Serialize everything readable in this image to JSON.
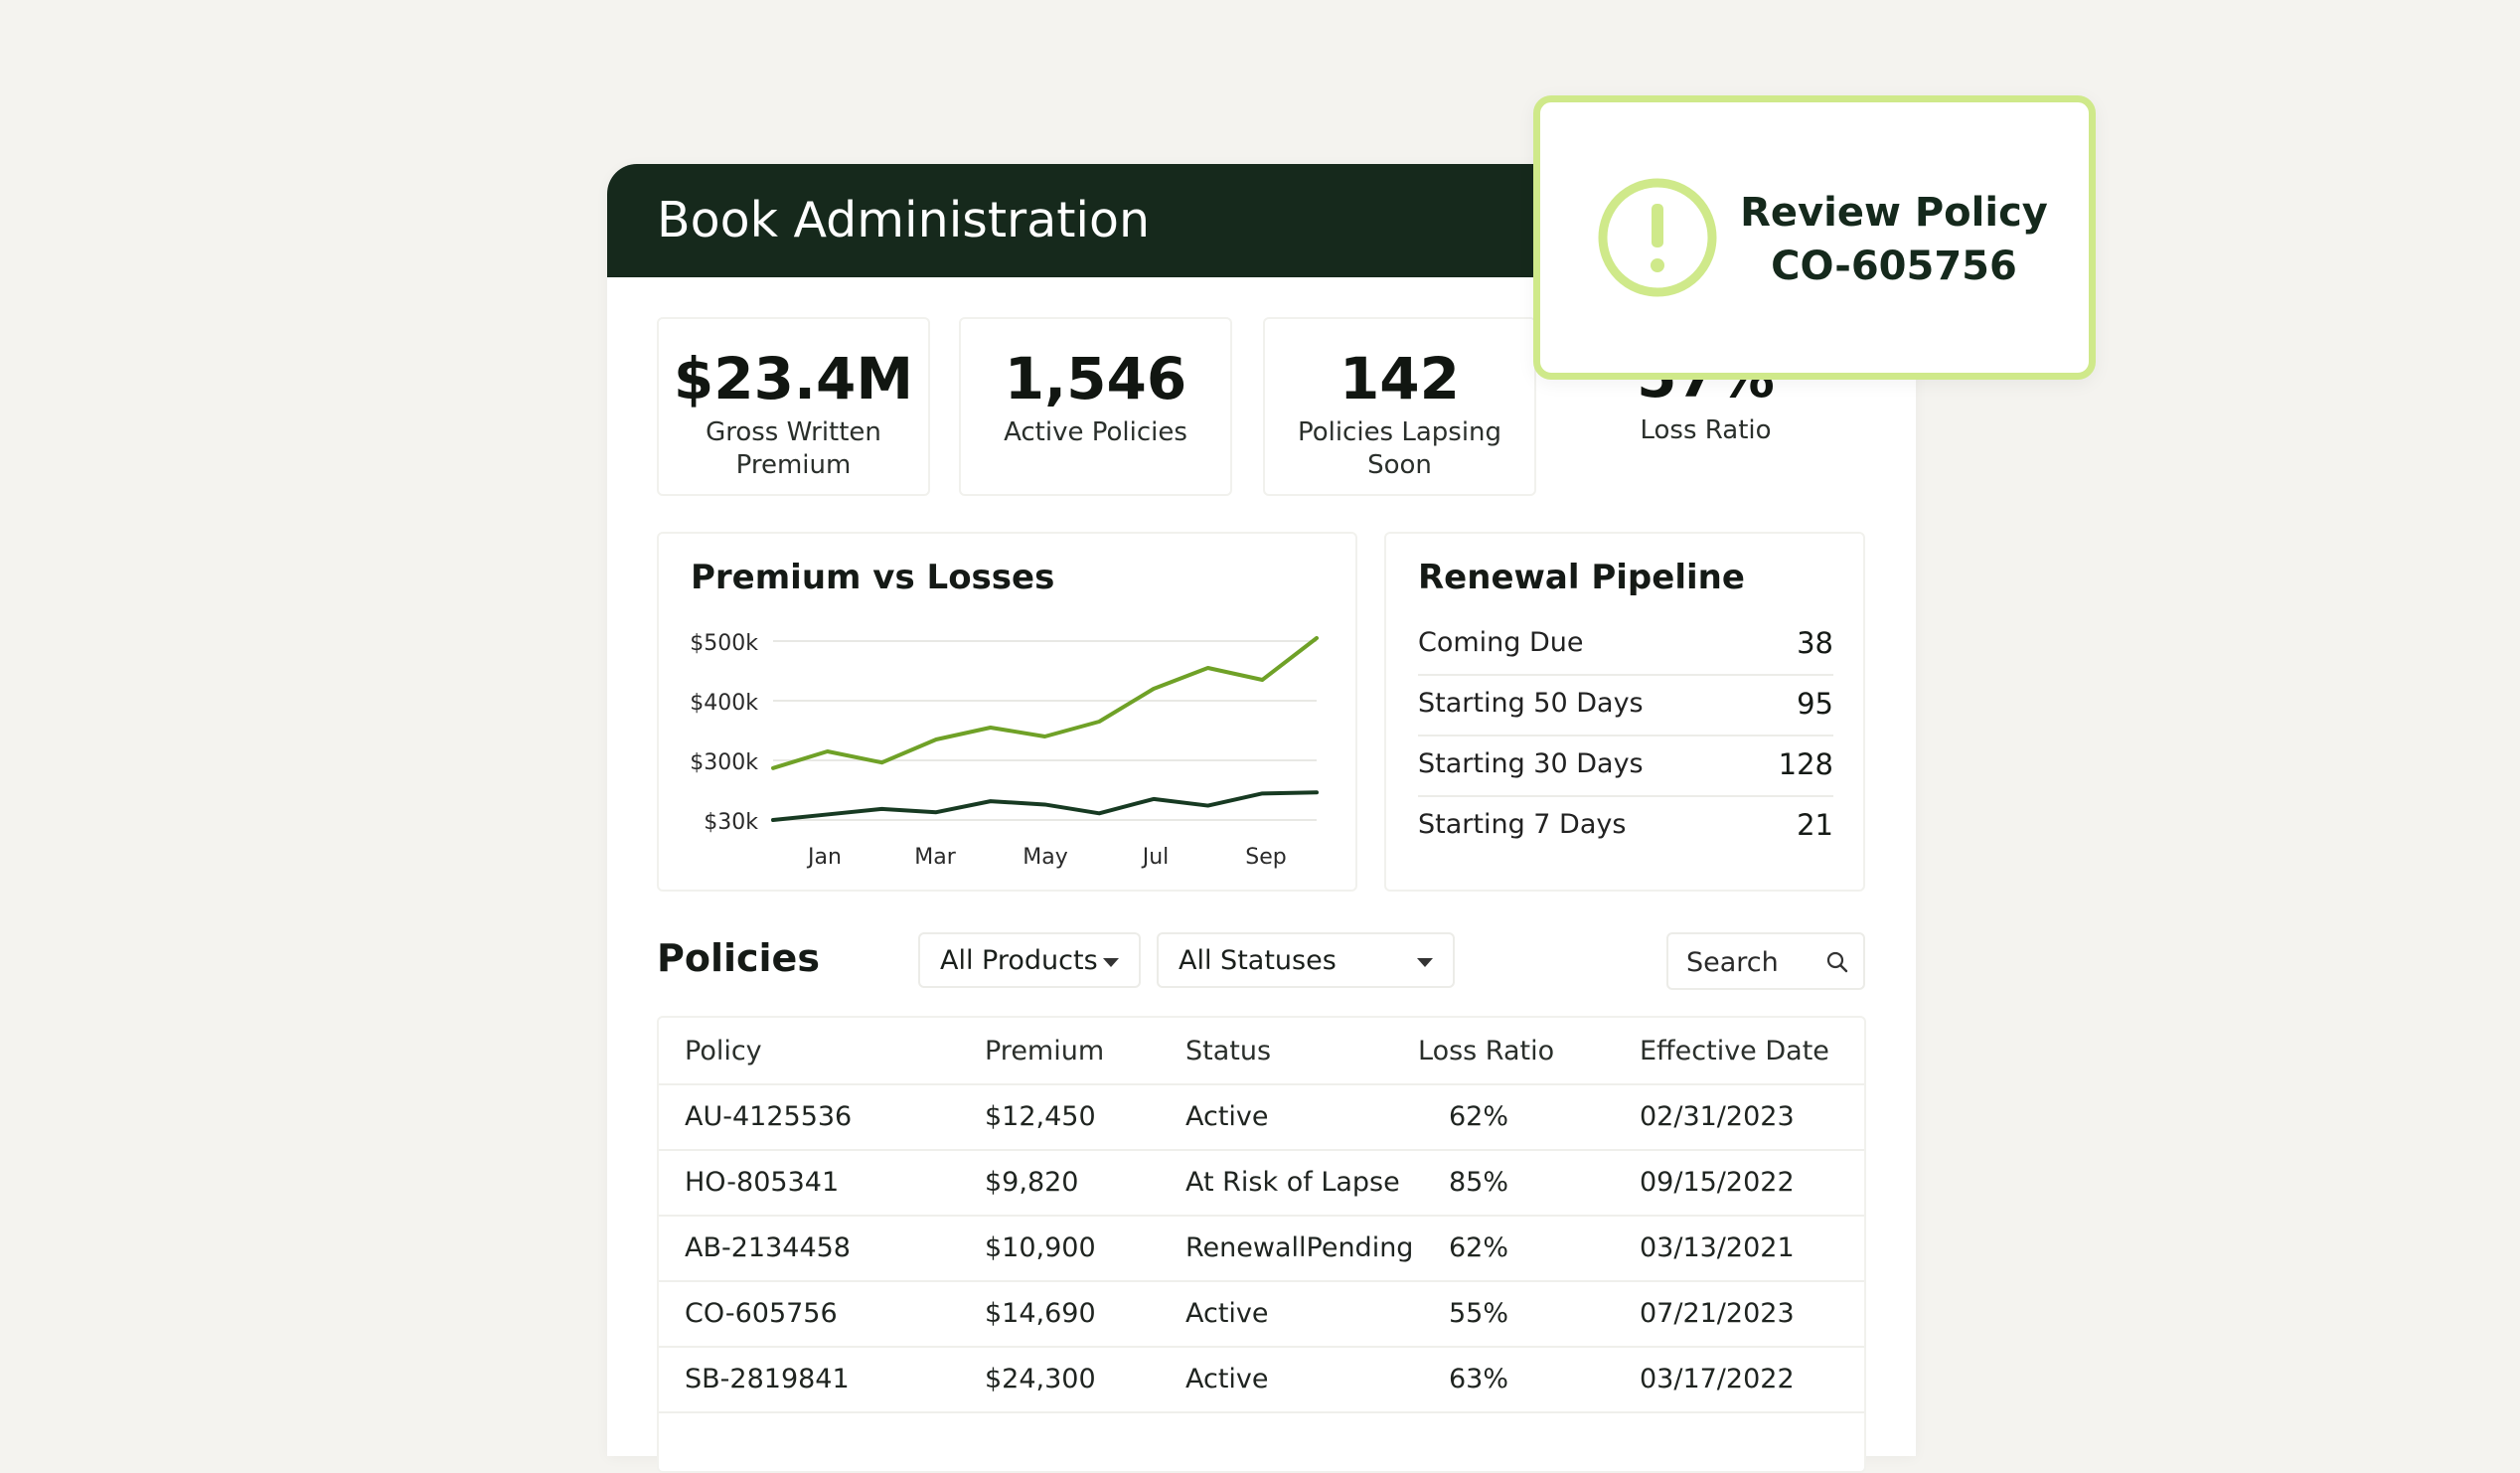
{
  "header": {
    "title": "Book Administration"
  },
  "kpis": [
    {
      "value": "$23.4M",
      "label": "Gross Written Premium"
    },
    {
      "value": "1,546",
      "label": "Active Policies"
    },
    {
      "value": "142",
      "label": "Policies Lapsing Soon"
    },
    {
      "value": "57%",
      "label": "Loss Ratio"
    }
  ],
  "chart_data": {
    "type": "line",
    "title": "Premium vs Losses",
    "xlabel": "",
    "ylabel": "",
    "x_tick_labels": [
      "Jan",
      "Mar",
      "May",
      "Jul",
      "Sep"
    ],
    "y_tick_labels": [
      "$500k",
      "$400k",
      "$300k",
      "$30k"
    ],
    "grid": true,
    "colors": {
      "premium": "#6fa127",
      "losses": "#173a22"
    },
    "series": [
      {
        "key": "premium",
        "values": [
          265,
          315,
          290,
          335,
          355,
          340,
          365,
          420,
          455,
          435,
          505
        ]
      },
      {
        "key": "losses",
        "values": [
          30,
          55,
          80,
          65,
          115,
          100,
          60,
          125,
          95,
          150,
          155
        ]
      }
    ]
  },
  "pipeline": {
    "title": "Renewal Pipeline",
    "rows": [
      {
        "label": "Coming Due",
        "value": "38"
      },
      {
        "label": "Starting 50 Days",
        "value": "95"
      },
      {
        "label": "Starting 30 Days",
        "value": "128"
      },
      {
        "label": "Starting 7 Days",
        "value": "21"
      }
    ]
  },
  "policies": {
    "title": "Policies",
    "filters": {
      "product": "All Products",
      "status": "All Statuses"
    },
    "search_placeholder": "Search",
    "columns": [
      "Policy",
      "Premium",
      "Status",
      "Loss Ratio",
      "Effective Date"
    ],
    "rows": [
      [
        "AU-4125536",
        "$12,450",
        "Active",
        "62%",
        "02/31/2023"
      ],
      [
        "HO-805341",
        "$9,820",
        "At Risk of Lapse",
        "85%",
        "09/15/2022"
      ],
      [
        "AB-2134458",
        "$10,900",
        "RenewallPending",
        "62%",
        "03/13/2021"
      ],
      [
        "CO-605756",
        "$14,690",
        "Active",
        "55%",
        "07/21/2023"
      ],
      [
        "SB-2819841",
        "$24,300",
        "Active",
        "63%",
        "03/17/2022"
      ]
    ]
  },
  "alert": {
    "line1": "Review Policy",
    "line2": "CO-605756",
    "icon": "exclamation-circle-icon",
    "accent": "#cfe98a"
  }
}
